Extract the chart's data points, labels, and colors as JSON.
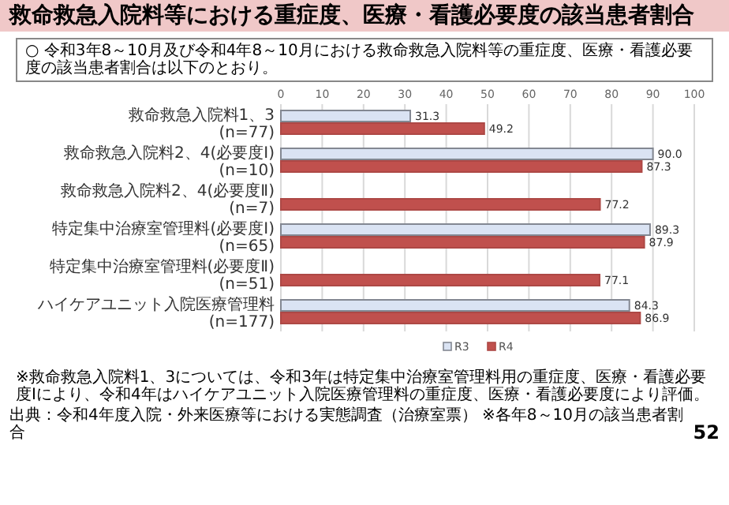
{
  "chart_data": {
    "type": "bar",
    "orientation": "horizontal",
    "title": "救命救急入院料等における重症度、医療・看護必要度の該当患者割合",
    "subtitle": "○ 令和3年8～10月及び令和4年8～10月における救命救急入院料等の重症度、医療・看護必要度の該当患者割合は以下のとおり。",
    "categories": [
      "救命救急入院料1、3 (n=77)",
      "救命救急入院料2、4(必要度Ⅰ) (n=10)",
      "救命救急入院料2、4(必要度Ⅱ) (n=7)",
      "特定集中治療室管理料(必要度Ⅰ) (n=65)",
      "特定集中治療室管理料(必要度Ⅱ) (n=51)",
      "ハイケアユニット入院医療管理料 (n=177)"
    ],
    "series": [
      {
        "name": "R3",
        "color": "#dae3f3",
        "values": [
          31.3,
          90.0,
          null,
          89.3,
          null,
          84.3
        ],
        "value_labels": [
          "31.3",
          "90.0",
          null,
          "89.3",
          null,
          "84.3"
        ]
      },
      {
        "name": "R4",
        "color": "#c0504d",
        "values": [
          49.2,
          87.3,
          77.2,
          87.9,
          77.1,
          86.9
        ],
        "value_labels": [
          "49.2",
          "87.3",
          "77.2",
          "87.9",
          "77.1",
          "86.9"
        ]
      }
    ],
    "xlim": [
      0,
      100
    ],
    "xticks": [
      0,
      10,
      20,
      30,
      40,
      50,
      60,
      70,
      80,
      90,
      100
    ],
    "grid": "x",
    "legend": "bottom",
    "annotations": [
      "※救命救急入院料1、3については、令和3年は特定集中治療室管理料用の重症度、医療・看護必要度Ⅰにより、令和4年はハイケアユニット入院医療管理料の重症度、医療・看護必要度により評価。",
      "出典：令和4年度入院・外来医療等における実態調査（治療室票） ※各年8～10月の該当患者割合",
      "52"
    ]
  }
}
